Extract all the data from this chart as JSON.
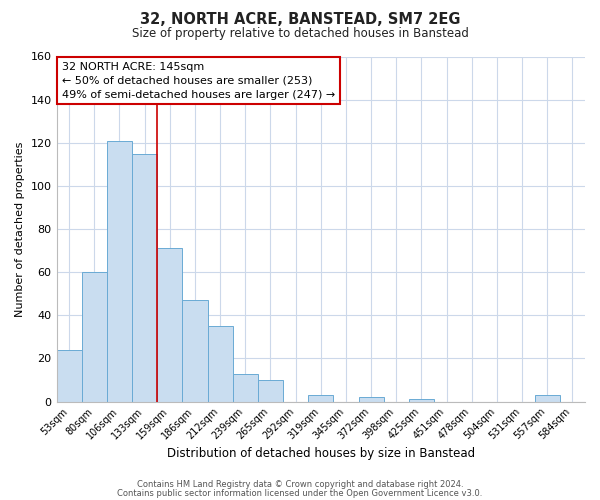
{
  "title": "32, NORTH ACRE, BANSTEAD, SM7 2EG",
  "subtitle": "Size of property relative to detached houses in Banstead",
  "xlabel": "Distribution of detached houses by size in Banstead",
  "ylabel": "Number of detached properties",
  "bar_labels": [
    "53sqm",
    "80sqm",
    "106sqm",
    "133sqm",
    "159sqm",
    "186sqm",
    "212sqm",
    "239sqm",
    "265sqm",
    "292sqm",
    "319sqm",
    "345sqm",
    "372sqm",
    "398sqm",
    "425sqm",
    "451sqm",
    "478sqm",
    "504sqm",
    "531sqm",
    "557sqm",
    "584sqm"
  ],
  "bar_values": [
    24,
    60,
    121,
    115,
    71,
    47,
    35,
    13,
    10,
    0,
    3,
    0,
    2,
    0,
    1,
    0,
    0,
    0,
    0,
    3,
    0
  ],
  "bar_color": "#c9ddf0",
  "bar_edge_color": "#6aaad4",
  "ylim": [
    0,
    160
  ],
  "yticks": [
    0,
    20,
    40,
    60,
    80,
    100,
    120,
    140,
    160
  ],
  "vline_x": 3.5,
  "vline_color": "#cc0000",
  "annotation_title": "32 NORTH ACRE: 145sqm",
  "annotation_line1": "← 50% of detached houses are smaller (253)",
  "annotation_line2": "49% of semi-detached houses are larger (247) →",
  "footer_line1": "Contains HM Land Registry data © Crown copyright and database right 2024.",
  "footer_line2": "Contains public sector information licensed under the Open Government Licence v3.0.",
  "background_color": "#ffffff",
  "grid_color": "#ccd8ea"
}
